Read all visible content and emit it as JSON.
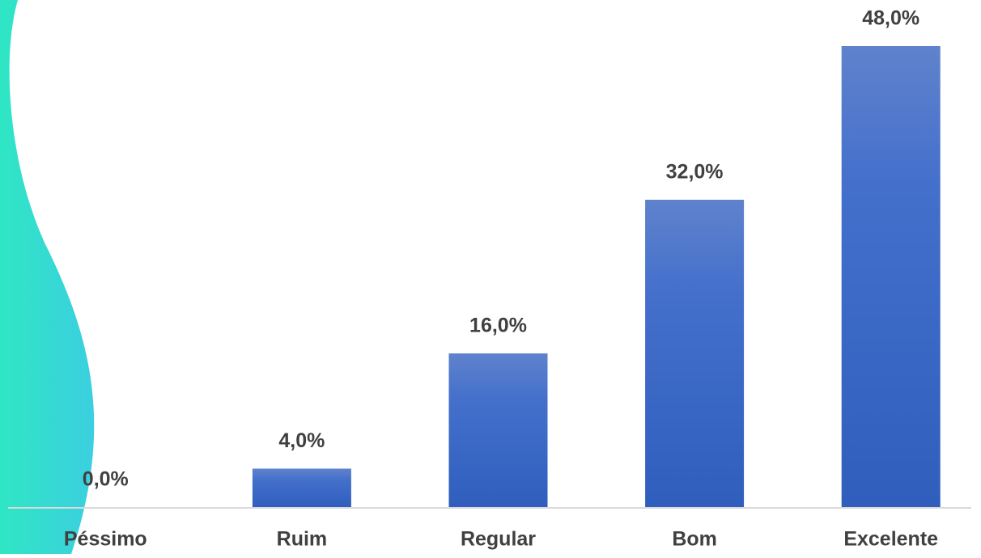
{
  "chart_data": {
    "type": "bar",
    "categories": [
      "Péssimo",
      "Ruim",
      "Regular",
      "Bom",
      "Excelente"
    ],
    "values": [
      0,
      4,
      16,
      32,
      48
    ],
    "value_labels": [
      "0,0%",
      "4,0%",
      "16,0%",
      "32,0%",
      "48,0%"
    ],
    "color": "#4472c4"
  }
}
